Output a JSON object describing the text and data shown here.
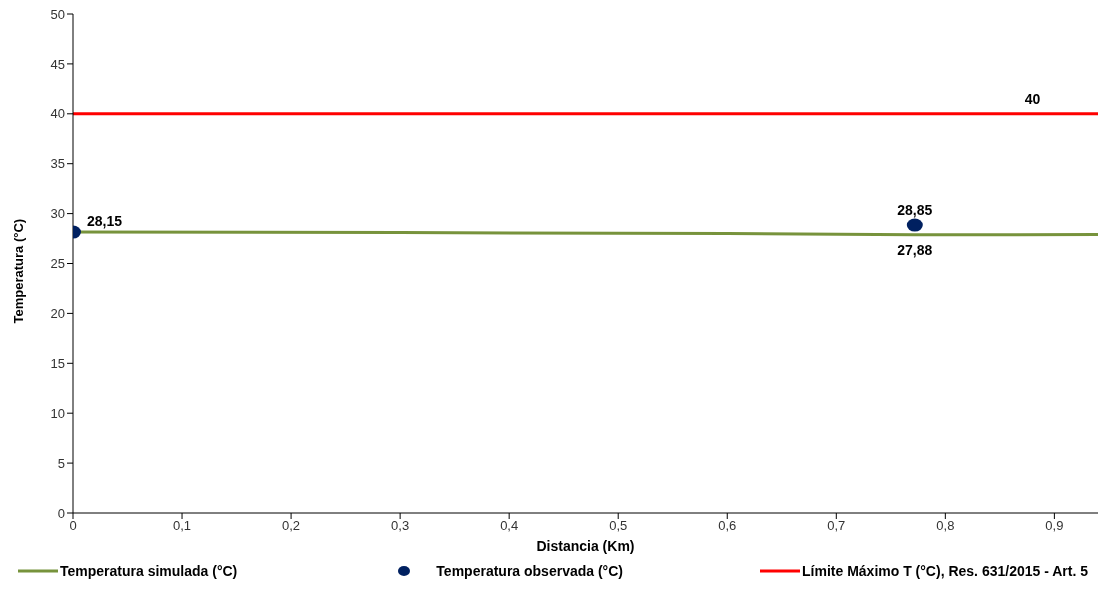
{
  "chart_data": {
    "type": "line",
    "xlabel": "Distancia (Km)",
    "ylabel": "Temperatura (°C)",
    "xlim": [
      0,
      0.94
    ],
    "xticks": [
      0,
      {
        "value": 0.1,
        "label": "0,1"
      },
      {
        "value": 0.2,
        "label": "0,2"
      },
      {
        "value": 0.3,
        "label": "0,3"
      },
      {
        "value": 0.4,
        "label": "0,4"
      },
      {
        "value": 0.5,
        "label": "0,5"
      },
      {
        "value": 0.6,
        "label": "0,6"
      },
      {
        "value": 0.7,
        "label": "0,7"
      },
      {
        "value": 0.8,
        "label": "0,8"
      },
      {
        "value": 0.9,
        "label": "0,9"
      }
    ],
    "ylim": [
      0,
      50
    ],
    "yticks": [
      0,
      5,
      10,
      15,
      20,
      25,
      30,
      35,
      40,
      45,
      50
    ],
    "series": [
      {
        "name": "Temperatura simulada (°C)",
        "color": "#77933c",
        "x": [
          0,
          0.3,
          0.6,
          0.772,
          0.94
        ],
        "values": [
          28.15,
          28.1,
          28.0,
          27.88,
          27.9
        ],
        "value_labels": [
          null,
          null,
          null,
          "27,88",
          null
        ]
      },
      {
        "name": "Temperatura observada (°C)",
        "type": "scatter",
        "color": "#002060",
        "x": [
          0,
          0.772
        ],
        "values": [
          28.15,
          28.85
        ],
        "value_labels": [
          "28,15",
          "28,85"
        ]
      },
      {
        "name": "Límite Máximo T (°C), Res. 631/2015 - Art. 5",
        "color": "#ff0000",
        "x": [
          0,
          0.88,
          0.94
        ],
        "values": [
          40,
          40,
          40
        ],
        "value_labels": [
          null,
          "40",
          null
        ]
      }
    ],
    "legend": "bottom"
  }
}
